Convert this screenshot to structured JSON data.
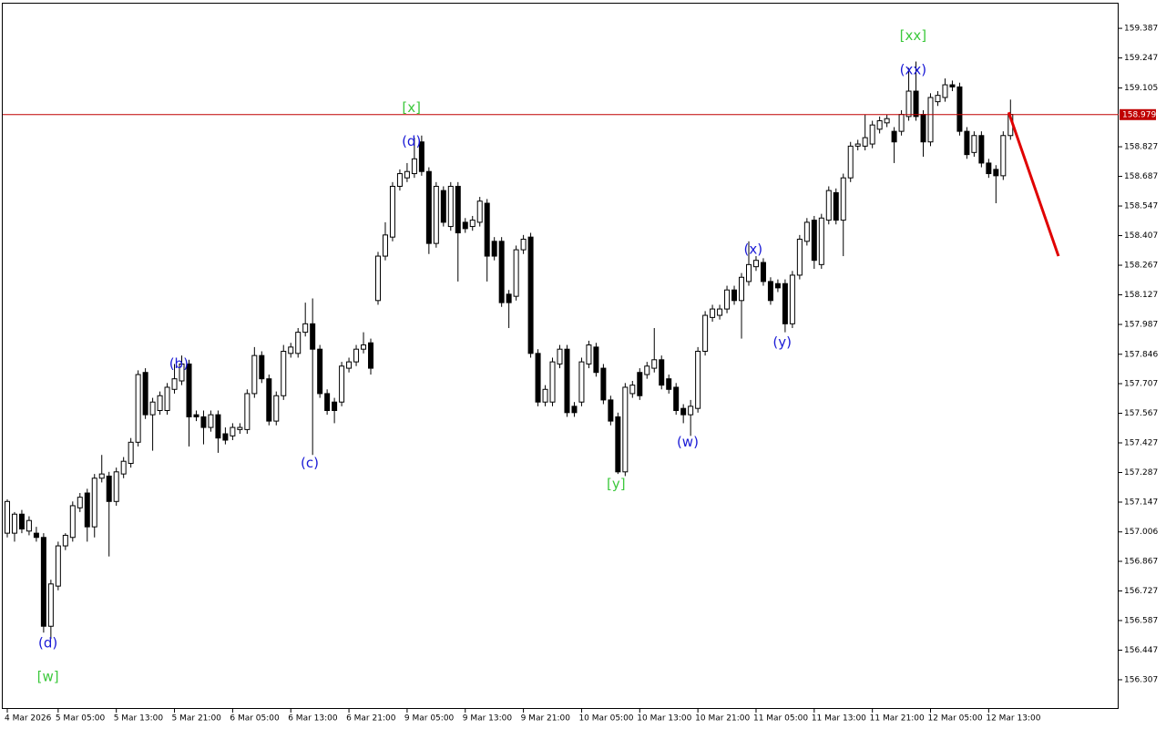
{
  "chart_data": {
    "type": "candlestick",
    "bull_color": "#ffffff",
    "bear_color": "#000000",
    "outline_color": "#000000",
    "ylim": [
      156.169,
      159.508
    ],
    "xlim": [
      -0.625,
      152.875
    ],
    "yticks": [
      159.387,
      159.247,
      159.105,
      158.827,
      158.687,
      158.547,
      158.407,
      158.267,
      158.127,
      157.987,
      157.846,
      157.707,
      157.567,
      157.427,
      157.287,
      157.147,
      157.006,
      156.867,
      156.727,
      156.587,
      156.447,
      156.307
    ],
    "xticks": [
      {
        "value": 0,
        "label": "4 Mar 2026"
      },
      {
        "value": 7,
        "label": "5 Mar 05:00"
      },
      {
        "value": 15,
        "label": "5 Mar 13:00"
      },
      {
        "value": 23,
        "label": "5 Mar 21:00"
      },
      {
        "value": 31,
        "label": "6 Mar 05:00"
      },
      {
        "value": 39,
        "label": "6 Mar 13:00"
      },
      {
        "value": 47,
        "label": "6 Mar 21:00"
      },
      {
        "value": 55,
        "label": "9 Mar 05:00"
      },
      {
        "value": 63,
        "label": "9 Mar 13:00"
      },
      {
        "value": 71,
        "label": "9 Mar 21:00"
      },
      {
        "value": 79,
        "label": "10 Mar 05:00"
      },
      {
        "value": 87,
        "label": "10 Mar 13:00"
      },
      {
        "value": 95,
        "label": "10 Mar 21:00"
      },
      {
        "value": 103,
        "label": "11 Mar 05:00"
      },
      {
        "value": 111,
        "label": "11 Mar 13:00"
      },
      {
        "value": 119,
        "label": "11 Mar 21:00"
      },
      {
        "value": 127,
        "label": "12 Mar 05:00"
      },
      {
        "value": 135,
        "label": "12 Mar 13:00"
      }
    ],
    "ohlc": [
      [
        157.0,
        157.16,
        156.98,
        157.15
      ],
      [
        157.0,
        157.1,
        156.96,
        157.09
      ],
      [
        157.09,
        157.11,
        157.0,
        157.02
      ],
      [
        157.01,
        157.08,
        156.99,
        157.06
      ],
      [
        157.0,
        157.03,
        156.96,
        156.98
      ],
      [
        156.98,
        157.0,
        156.53,
        156.56
      ],
      [
        156.56,
        156.78,
        156.5,
        156.76
      ],
      [
        156.75,
        156.96,
        156.73,
        156.94
      ],
      [
        156.94,
        157.0,
        156.92,
        156.99
      ],
      [
        156.98,
        157.15,
        156.96,
        157.13
      ],
      [
        157.12,
        157.19,
        157.1,
        157.17
      ],
      [
        157.19,
        157.21,
        156.96,
        157.03
      ],
      [
        157.03,
        157.28,
        156.98,
        157.26
      ],
      [
        157.26,
        157.37,
        157.24,
        157.28
      ],
      [
        157.27,
        157.29,
        156.89,
        157.15
      ],
      [
        157.15,
        157.31,
        157.13,
        157.29
      ],
      [
        157.28,
        157.36,
        157.26,
        157.34
      ],
      [
        157.33,
        157.45,
        157.31,
        157.43
      ],
      [
        157.43,
        157.77,
        157.41,
        157.75
      ],
      [
        157.76,
        157.78,
        157.54,
        157.56
      ],
      [
        157.56,
        157.64,
        157.39,
        157.62
      ],
      [
        157.58,
        157.67,
        157.56,
        157.65
      ],
      [
        157.58,
        157.71,
        157.56,
        157.69
      ],
      [
        157.68,
        157.8,
        157.66,
        157.73
      ],
      [
        157.72,
        157.84,
        157.7,
        157.8
      ],
      [
        157.8,
        157.82,
        157.41,
        157.55
      ],
      [
        157.56,
        157.58,
        157.53,
        157.55
      ],
      [
        157.55,
        157.58,
        157.42,
        157.5
      ],
      [
        157.5,
        157.58,
        157.48,
        157.56
      ],
      [
        157.56,
        157.58,
        157.38,
        157.45
      ],
      [
        157.47,
        157.5,
        157.42,
        157.44
      ],
      [
        157.46,
        157.52,
        157.44,
        157.5
      ],
      [
        157.49,
        157.52,
        157.47,
        157.5
      ],
      [
        157.49,
        157.68,
        157.47,
        157.66
      ],
      [
        157.66,
        157.88,
        157.64,
        157.84
      ],
      [
        157.84,
        157.86,
        157.71,
        157.73
      ],
      [
        157.73,
        157.75,
        157.51,
        157.53
      ],
      [
        157.53,
        157.67,
        157.51,
        157.65
      ],
      [
        157.65,
        157.89,
        157.63,
        157.86
      ],
      [
        157.85,
        157.9,
        157.83,
        157.88
      ],
      [
        157.85,
        157.97,
        157.83,
        157.95
      ],
      [
        157.95,
        158.09,
        157.93,
        157.99
      ],
      [
        157.99,
        158.11,
        157.37,
        157.87
      ],
      [
        157.87,
        157.89,
        157.64,
        157.66
      ],
      [
        157.66,
        157.68,
        157.56,
        157.58
      ],
      [
        157.62,
        157.64,
        157.52,
        157.58
      ],
      [
        157.62,
        157.81,
        157.6,
        157.79
      ],
      [
        157.78,
        157.83,
        157.76,
        157.81
      ],
      [
        157.81,
        157.89,
        157.79,
        157.87
      ],
      [
        157.87,
        157.95,
        157.85,
        157.89
      ],
      [
        157.9,
        157.92,
        157.75,
        157.78
      ],
      [
        158.1,
        158.33,
        158.08,
        158.31
      ],
      [
        158.31,
        158.47,
        158.29,
        158.41
      ],
      [
        158.4,
        158.66,
        158.38,
        158.64
      ],
      [
        158.64,
        158.72,
        158.62,
        158.7
      ],
      [
        158.68,
        158.75,
        158.66,
        158.71
      ],
      [
        158.7,
        158.87,
        158.68,
        158.77
      ],
      [
        158.85,
        158.88,
        158.69,
        158.71
      ],
      [
        158.71,
        158.73,
        158.32,
        158.37
      ],
      [
        158.37,
        158.66,
        158.35,
        158.64
      ],
      [
        158.62,
        158.64,
        158.45,
        158.47
      ],
      [
        158.45,
        158.66,
        158.43,
        158.64
      ],
      [
        158.64,
        158.66,
        158.19,
        158.42
      ],
      [
        158.47,
        158.49,
        158.42,
        158.44
      ],
      [
        158.45,
        158.5,
        158.43,
        158.48
      ],
      [
        158.47,
        158.59,
        158.45,
        158.57
      ],
      [
        158.56,
        158.58,
        158.19,
        158.31
      ],
      [
        158.38,
        158.4,
        158.29,
        158.31
      ],
      [
        158.38,
        158.4,
        158.07,
        158.09
      ],
      [
        158.13,
        158.15,
        157.97,
        158.09
      ],
      [
        158.12,
        158.36,
        158.1,
        158.34
      ],
      [
        158.34,
        158.41,
        158.32,
        158.39
      ],
      [
        158.4,
        158.42,
        157.83,
        157.85
      ],
      [
        157.85,
        157.87,
        157.6,
        157.62
      ],
      [
        157.62,
        157.7,
        157.6,
        157.68
      ],
      [
        157.62,
        157.83,
        157.6,
        157.81
      ],
      [
        157.8,
        157.89,
        157.78,
        157.87
      ],
      [
        157.87,
        157.89,
        157.55,
        157.57
      ],
      [
        157.6,
        157.62,
        157.55,
        157.57
      ],
      [
        157.62,
        157.83,
        157.6,
        157.81
      ],
      [
        157.8,
        157.91,
        157.78,
        157.89
      ],
      [
        157.88,
        157.9,
        157.74,
        157.76
      ],
      [
        157.78,
        157.8,
        157.61,
        157.63
      ],
      [
        157.63,
        157.65,
        157.51,
        157.53
      ],
      [
        157.55,
        157.57,
        157.28,
        157.29
      ],
      [
        157.29,
        157.71,
        157.27,
        157.69
      ],
      [
        157.66,
        157.72,
        157.64,
        157.7
      ],
      [
        157.76,
        157.78,
        157.63,
        157.65
      ],
      [
        157.75,
        157.81,
        157.73,
        157.79
      ],
      [
        157.78,
        157.97,
        157.76,
        157.82
      ],
      [
        157.82,
        157.84,
        157.68,
        157.7
      ],
      [
        157.73,
        157.75,
        157.66,
        157.68
      ],
      [
        157.69,
        157.71,
        157.56,
        157.58
      ],
      [
        157.59,
        157.61,
        157.52,
        157.56
      ],
      [
        157.56,
        157.63,
        157.46,
        157.6
      ],
      [
        157.59,
        157.88,
        157.57,
        157.86
      ],
      [
        157.86,
        158.05,
        157.84,
        158.03
      ],
      [
        158.02,
        158.08,
        158.0,
        158.06
      ],
      [
        158.03,
        158.08,
        158.01,
        158.06
      ],
      [
        158.06,
        158.17,
        158.04,
        158.15
      ],
      [
        158.15,
        158.17,
        158.08,
        158.1
      ],
      [
        158.1,
        158.23,
        157.92,
        158.21
      ],
      [
        158.19,
        158.38,
        158.17,
        158.27
      ],
      [
        158.26,
        158.31,
        158.24,
        158.29
      ],
      [
        158.28,
        158.3,
        158.17,
        158.19
      ],
      [
        158.19,
        158.21,
        158.08,
        158.1
      ],
      [
        158.18,
        158.2,
        158.14,
        158.16
      ],
      [
        158.18,
        158.2,
        157.95,
        157.99
      ],
      [
        157.99,
        158.24,
        157.97,
        158.22
      ],
      [
        158.22,
        158.41,
        158.2,
        158.39
      ],
      [
        158.38,
        158.49,
        158.36,
        158.47
      ],
      [
        158.48,
        158.5,
        158.25,
        158.29
      ],
      [
        158.27,
        158.51,
        158.25,
        158.49
      ],
      [
        158.48,
        158.64,
        158.46,
        158.62
      ],
      [
        158.61,
        158.63,
        158.46,
        158.48
      ],
      [
        158.48,
        158.7,
        158.31,
        158.68
      ],
      [
        158.68,
        158.85,
        158.66,
        158.83
      ],
      [
        158.83,
        158.86,
        158.81,
        158.84
      ],
      [
        158.83,
        158.98,
        158.81,
        158.87
      ],
      [
        158.84,
        158.95,
        158.82,
        158.93
      ],
      [
        158.91,
        158.97,
        158.89,
        158.95
      ],
      [
        158.94,
        158.98,
        158.92,
        158.96
      ],
      [
        158.9,
        158.92,
        158.75,
        158.85
      ],
      [
        158.9,
        159.0,
        158.88,
        158.98
      ],
      [
        158.97,
        159.2,
        158.95,
        159.09
      ],
      [
        159.09,
        159.23,
        158.95,
        158.97
      ],
      [
        158.98,
        159.0,
        158.78,
        158.85
      ],
      [
        158.85,
        159.08,
        158.83,
        159.06
      ],
      [
        159.04,
        159.09,
        159.02,
        159.07
      ],
      [
        159.06,
        159.15,
        159.04,
        159.12
      ],
      [
        159.12,
        159.14,
        159.09,
        159.11
      ],
      [
        159.11,
        159.13,
        158.88,
        158.9
      ],
      [
        158.9,
        158.92,
        158.77,
        158.79
      ],
      [
        158.8,
        158.9,
        158.78,
        158.88
      ],
      [
        158.88,
        158.9,
        158.73,
        158.75
      ],
      [
        158.75,
        158.77,
        158.68,
        158.7
      ],
      [
        158.72,
        158.74,
        158.56,
        158.69
      ],
      [
        158.69,
        158.9,
        158.67,
        158.88
      ],
      [
        158.88,
        159.05,
        158.86,
        158.98
      ]
    ],
    "price_line": {
      "value": 158.979,
      "color": "#c00000"
    },
    "forecast": {
      "x": [
        137.75,
        144.6
      ],
      "y": [
        158.99,
        158.31
      ],
      "color": "#e00000"
    },
    "annotations": [
      {
        "text": "[w]",
        "x": 5.6,
        "y": 156.32,
        "color": "#3cc83c"
      },
      {
        "text": "(d)",
        "x": 5.6,
        "y": 156.48,
        "color": "#1a1ad6"
      },
      {
        "text": "(b)",
        "x": 23.6,
        "y": 157.8,
        "color": "#1a1ad6"
      },
      {
        "text": "(c)",
        "x": 41.6,
        "y": 157.33,
        "color": "#1a1ad6"
      },
      {
        "text": "[x]",
        "x": 55.6,
        "y": 159.01,
        "color": "#3cc83c"
      },
      {
        "text": "(d)",
        "x": 55.6,
        "y": 158.85,
        "color": "#1a1ad6"
      },
      {
        "text": "[y]",
        "x": 83.75,
        "y": 157.23,
        "color": "#3cc83c"
      },
      {
        "text": "(w)",
        "x": 93.6,
        "y": 157.43,
        "color": "#1a1ad6"
      },
      {
        "text": "(x)",
        "x": 102.6,
        "y": 158.34,
        "color": "#1a1ad6"
      },
      {
        "text": "(y)",
        "x": 106.6,
        "y": 157.9,
        "color": "#1a1ad6"
      },
      {
        "text": "(xx)",
        "x": 124.6,
        "y": 159.19,
        "color": "#1a1ad6"
      },
      {
        "text": "[xx]",
        "x": 124.6,
        "y": 159.35,
        "color": "#3cc83c"
      }
    ]
  }
}
